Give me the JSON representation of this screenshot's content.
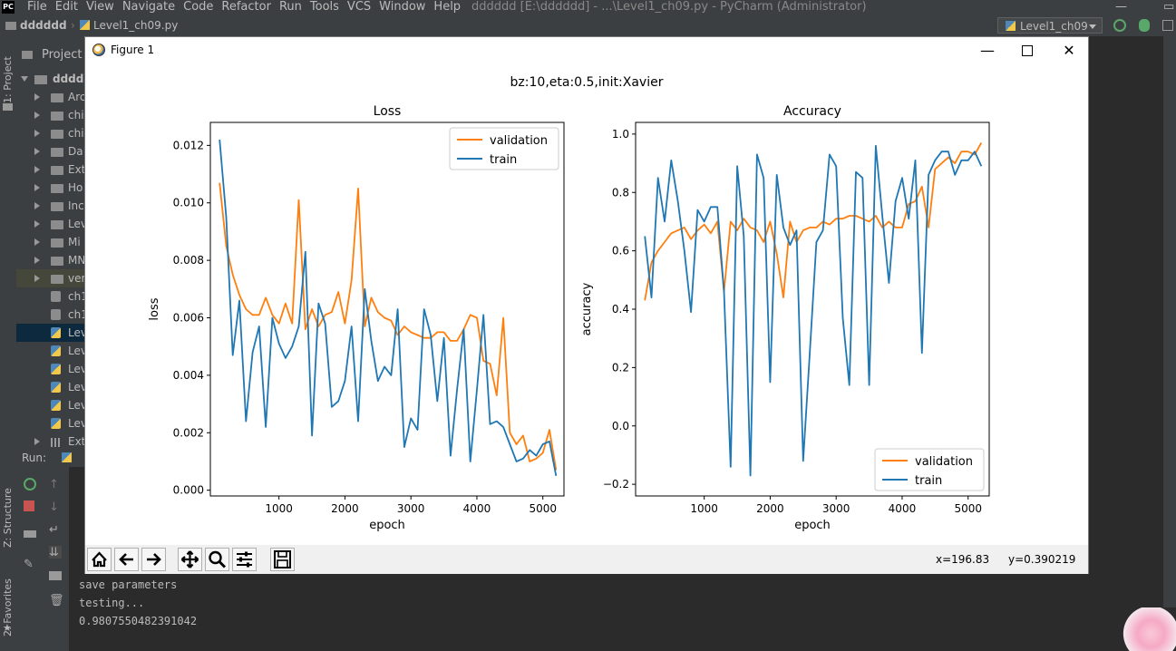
{
  "menubar": {
    "logo": "PC",
    "items": [
      "File",
      "Edit",
      "View",
      "Navigate",
      "Code",
      "Refactor",
      "Run",
      "Tools",
      "VCS",
      "Window",
      "Help"
    ],
    "window_title": "dddddd [E:\\dddddd] - ...\\Level1_ch09.py - PyCharm (Administrator)"
  },
  "navbar": {
    "project_crumb": "dddddd",
    "file_crumb": "Level1_ch09.py",
    "run_config": "Level1_ch09"
  },
  "left_strip": {
    "project_tab": "1: Project",
    "structure_tab": "Z: Structure",
    "favorites_tab": "2: Favorites"
  },
  "project_panel": {
    "header": "Project",
    "root": "dddd",
    "items": [
      {
        "type": "folder",
        "label": "Arc"
      },
      {
        "type": "folder",
        "label": "chi"
      },
      {
        "type": "folder",
        "label": "chi"
      },
      {
        "type": "folder",
        "label": "Da"
      },
      {
        "type": "folder",
        "label": "Ext"
      },
      {
        "type": "folder",
        "label": "Ho"
      },
      {
        "type": "folder",
        "label": "Inc"
      },
      {
        "type": "folder",
        "label": "Lev"
      },
      {
        "type": "folder",
        "label": "Mi"
      },
      {
        "type": "folder",
        "label": "MN"
      },
      {
        "type": "folder",
        "label": "ver"
      },
      {
        "type": "file",
        "label": "ch1"
      },
      {
        "type": "file",
        "label": "ch1"
      },
      {
        "type": "pyfile",
        "label": "Lev"
      },
      {
        "type": "pyfile",
        "label": "Lev"
      },
      {
        "type": "pyfile",
        "label": "Lev"
      },
      {
        "type": "pyfile",
        "label": "Lev"
      },
      {
        "type": "pyfile",
        "label": "Lev"
      },
      {
        "type": "pyfile",
        "label": "Lev"
      }
    ],
    "external": "Extern"
  },
  "run_panel": {
    "label": "Run:",
    "console_lines": [
      "save parameters",
      "testing...",
      "0.9807550482391042"
    ]
  },
  "figure": {
    "window_title": "Figure 1",
    "suptitle": "bz:10,eta:0.5,init:Xavier",
    "coords": {
      "x": "x=196.83",
      "y": "y=0.390219"
    },
    "colors": {
      "validation": "#ff7f0e",
      "train": "#1f77b4"
    }
  },
  "chart_data": [
    {
      "type": "line",
      "title": "Loss",
      "xlabel": "epoch",
      "ylabel": "loss",
      "xlim": [
        -40,
        5320
      ],
      "ylim": [
        -0.0002,
        0.0128
      ],
      "xticks": [
        1000,
        2000,
        3000,
        4000,
        5000
      ],
      "yticks": [
        0.0,
        0.002,
        0.004,
        0.006,
        0.008,
        0.01,
        0.012
      ],
      "ytick_labels": [
        "0.000",
        "0.002",
        "0.004",
        "0.006",
        "0.008",
        "0.010",
        "0.012"
      ],
      "legend": "top-right",
      "grid": false,
      "series": [
        {
          "name": "validation",
          "x": [
            100,
            200,
            300,
            400,
            500,
            600,
            700,
            800,
            900,
            1000,
            1100,
            1200,
            1300,
            1400,
            1500,
            1600,
            1700,
            1800,
            1900,
            2000,
            2100,
            2200,
            2300,
            2400,
            2500,
            2600,
            2700,
            2800,
            2900,
            3000,
            3100,
            3200,
            3300,
            3400,
            3500,
            3600,
            3700,
            3800,
            3900,
            4000,
            4100,
            4200,
            4300,
            4400,
            4500,
            4600,
            4700,
            4800,
            4900,
            5000,
            5100,
            5200
          ],
          "y": [
            0.0107,
            0.0085,
            0.0075,
            0.0068,
            0.0063,
            0.0061,
            0.0061,
            0.0067,
            0.0061,
            0.0058,
            0.0065,
            0.0058,
            0.0101,
            0.0056,
            0.0063,
            0.0057,
            0.0061,
            0.0062,
            0.0069,
            0.0058,
            0.0073,
            0.0105,
            0.0057,
            0.0067,
            0.0062,
            0.006,
            0.0059,
            0.0054,
            0.0057,
            0.0055,
            0.0054,
            0.0053,
            0.0053,
            0.0055,
            0.0055,
            0.0052,
            0.0052,
            0.0056,
            0.0061,
            0.006,
            0.0045,
            0.0044,
            0.0033,
            0.006,
            0.002,
            0.0016,
            0.0019,
            0.001,
            0.0011,
            0.0013,
            0.0021,
            0.0007
          ]
        },
        {
          "name": "train",
          "x": [
            100,
            200,
            300,
            400,
            500,
            600,
            700,
            800,
            900,
            1000,
            1100,
            1200,
            1300,
            1400,
            1500,
            1600,
            1700,
            1800,
            1900,
            2000,
            2100,
            2200,
            2300,
            2400,
            2500,
            2600,
            2700,
            2800,
            2900,
            3000,
            3100,
            3200,
            3300,
            3400,
            3500,
            3600,
            3700,
            3800,
            3900,
            4000,
            4100,
            4200,
            4300,
            4400,
            4500,
            4600,
            4700,
            4800,
            4900,
            5000,
            5100,
            5200
          ],
          "y": [
            0.0122,
            0.0095,
            0.0047,
            0.0066,
            0.0024,
            0.0048,
            0.0057,
            0.0022,
            0.006,
            0.0051,
            0.0046,
            0.005,
            0.0057,
            0.0083,
            0.0019,
            0.0065,
            0.0058,
            0.0029,
            0.0031,
            0.0038,
            0.0057,
            0.0024,
            0.007,
            0.0052,
            0.0038,
            0.0043,
            0.004,
            0.0063,
            0.0015,
            0.0025,
            0.0021,
            0.0063,
            0.0054,
            0.0031,
            0.0053,
            0.0012,
            0.0035,
            0.0056,
            0.001,
            0.0035,
            0.0061,
            0.0023,
            0.0024,
            0.0022,
            0.0016,
            0.001,
            0.0011,
            0.0014,
            0.0012,
            0.0016,
            0.0017,
            0.0005
          ]
        }
      ]
    },
    {
      "type": "line",
      "title": "Accuracy",
      "xlabel": "epoch",
      "ylabel": "accuracy",
      "xlim": [
        -40,
        5320
      ],
      "ylim": [
        -0.24,
        1.04
      ],
      "xticks": [
        1000,
        2000,
        3000,
        4000,
        5000
      ],
      "yticks": [
        -0.2,
        0.0,
        0.2,
        0.4,
        0.6,
        0.8,
        1.0
      ],
      "ytick_labels": [
        "−0.2",
        "0.0",
        "0.2",
        "0.4",
        "0.6",
        "0.8",
        "1.0"
      ],
      "legend": "bottom-right",
      "grid": false,
      "series": [
        {
          "name": "validation",
          "x": [
            100,
            200,
            300,
            400,
            500,
            600,
            700,
            800,
            900,
            1000,
            1100,
            1200,
            1300,
            1400,
            1500,
            1600,
            1700,
            1800,
            1900,
            2000,
            2100,
            2200,
            2300,
            2400,
            2500,
            2600,
            2700,
            2800,
            2900,
            3000,
            3100,
            3200,
            3300,
            3400,
            3500,
            3600,
            3700,
            3800,
            3900,
            4000,
            4100,
            4200,
            4300,
            4400,
            4500,
            4600,
            4700,
            4800,
            4900,
            5000,
            5100,
            5200
          ],
          "y": [
            0.43,
            0.56,
            0.6,
            0.63,
            0.66,
            0.67,
            0.68,
            0.64,
            0.67,
            0.69,
            0.66,
            0.7,
            0.46,
            0.7,
            0.67,
            0.71,
            0.68,
            0.67,
            0.63,
            0.7,
            0.59,
            0.44,
            0.7,
            0.63,
            0.67,
            0.68,
            0.68,
            0.7,
            0.69,
            0.71,
            0.71,
            0.72,
            0.72,
            0.71,
            0.7,
            0.72,
            0.68,
            0.7,
            0.68,
            0.68,
            0.76,
            0.77,
            0.82,
            0.68,
            0.88,
            0.9,
            0.92,
            0.9,
            0.94,
            0.94,
            0.93,
            0.97
          ]
        },
        {
          "name": "train",
          "x": [
            100,
            200,
            300,
            400,
            500,
            600,
            700,
            800,
            900,
            1000,
            1100,
            1200,
            1300,
            1400,
            1500,
            1600,
            1700,
            1800,
            1900,
            2000,
            2100,
            2200,
            2300,
            2400,
            2500,
            2600,
            2700,
            2800,
            2900,
            3000,
            3100,
            3200,
            3300,
            3400,
            3500,
            3600,
            3700,
            3800,
            3900,
            4000,
            4100,
            4200,
            4300,
            4400,
            4500,
            4600,
            4700,
            4800,
            4900,
            5000,
            5100,
            5200
          ],
          "y": [
            0.65,
            0.44,
            0.85,
            0.7,
            0.91,
            0.77,
            0.6,
            0.39,
            0.74,
            0.7,
            0.75,
            0.75,
            0.46,
            -0.14,
            0.89,
            0.65,
            -0.17,
            0.93,
            0.85,
            0.15,
            0.86,
            0.68,
            0.62,
            0.67,
            -0.12,
            0.25,
            0.63,
            0.67,
            0.93,
            0.89,
            0.37,
            0.14,
            0.87,
            0.85,
            0.14,
            0.96,
            0.72,
            0.49,
            0.77,
            0.85,
            0.71,
            0.91,
            0.25,
            0.86,
            0.91,
            0.94,
            0.94,
            0.86,
            0.91,
            0.91,
            0.94,
            0.89
          ]
        }
      ]
    }
  ]
}
